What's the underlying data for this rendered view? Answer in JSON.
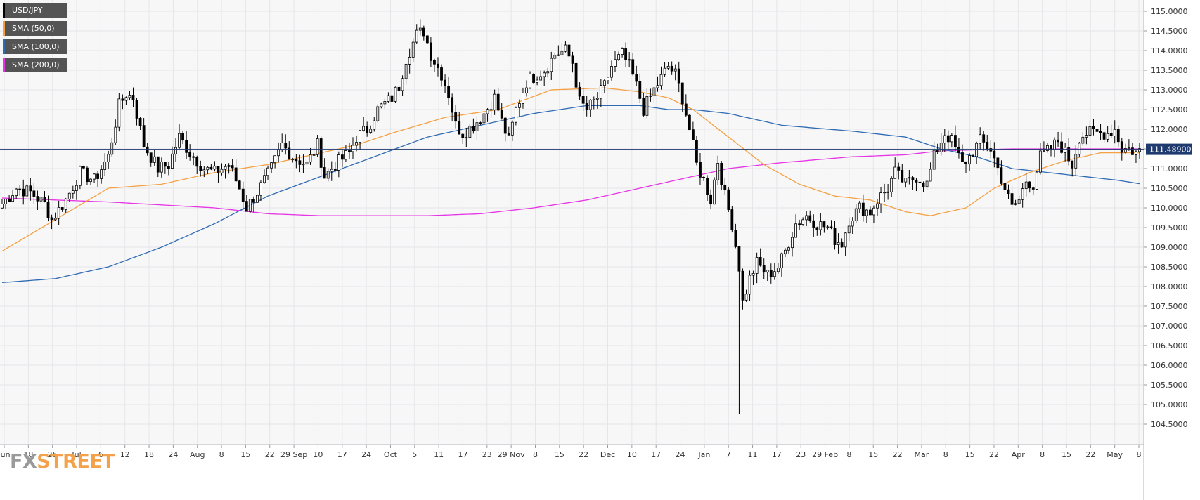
{
  "chart_data": {
    "type": "candlestick",
    "symbol": "USD/JPY",
    "legend": [
      {
        "label": "USD/JPY",
        "color": "#000000"
      },
      {
        "label": "SMA (50,0)",
        "color": "#f5a041"
      },
      {
        "label": "SMA (100,0)",
        "color": "#2f6bb3"
      },
      {
        "label": "SMA (200,0)",
        "color": "#e535e5"
      }
    ],
    "ylim": [
      104.3,
      115.2
    ],
    "y_ticks": [
      "115.0000",
      "114.5000",
      "114.0000",
      "113.5000",
      "113.0000",
      "112.5000",
      "112.0000",
      "111.5000",
      "111.0000",
      "110.5000",
      "110.0000",
      "109.5000",
      "109.0000",
      "108.5000",
      "108.0000",
      "107.5000",
      "107.0000",
      "106.5000",
      "106.0000",
      "105.5000",
      "105.0000",
      "104.5000"
    ],
    "x_ticks": [
      "Jun",
      "18",
      "25",
      "Jul",
      "6",
      "12",
      "18",
      "24",
      "Aug",
      "8",
      "15",
      "22",
      "29 Sep",
      "10",
      "17",
      "24",
      "Oct",
      "5",
      "11",
      "17",
      "23",
      "29 Nov",
      "8",
      "15",
      "22",
      "Dec",
      "10",
      "17",
      "24",
      "Jan",
      "7",
      "11",
      "17",
      "23",
      "29 Feb",
      "8",
      "15",
      "22",
      "Mar",
      "8",
      "15",
      "22",
      "Apr",
      "8",
      "15",
      "22",
      "May",
      "8"
    ],
    "current_price": 111.489,
    "current_price_label": "111.48900",
    "ohlc_anchors": [
      [
        0,
        110.1
      ],
      [
        4,
        110.5
      ],
      [
        8,
        110.4
      ],
      [
        12,
        110.1
      ],
      [
        14,
        109.7
      ],
      [
        18,
        110.2
      ],
      [
        22,
        110.9
      ],
      [
        26,
        110.7
      ],
      [
        30,
        111.3
      ],
      [
        33,
        112.6
      ],
      [
        35,
        112.9
      ],
      [
        37,
        112.8
      ],
      [
        40,
        111.6
      ],
      [
        44,
        111.0
      ],
      [
        47,
        111.1
      ],
      [
        50,
        111.8
      ],
      [
        53,
        111.4
      ],
      [
        57,
        111.0
      ],
      [
        60,
        110.9
      ],
      [
        64,
        111.1
      ],
      [
        67,
        110.5
      ],
      [
        69,
        110.0
      ],
      [
        72,
        110.4
      ],
      [
        76,
        111.0
      ],
      [
        79,
        111.6
      ],
      [
        82,
        111.3
      ],
      [
        86,
        111.1
      ],
      [
        89,
        111.6
      ],
      [
        91,
        110.8
      ],
      [
        94,
        111.1
      ],
      [
        98,
        111.4
      ],
      [
        100,
        111.8
      ],
      [
        103,
        112.0
      ],
      [
        106,
        112.5
      ],
      [
        110,
        112.8
      ],
      [
        112,
        113.1
      ],
      [
        114,
        113.8
      ],
      [
        117,
        114.4
      ],
      [
        119,
        114.5
      ],
      [
        121,
        113.9
      ],
      [
        124,
        113.4
      ],
      [
        126,
        112.9
      ],
      [
        128,
        112.1
      ],
      [
        130,
        111.9
      ],
      [
        133,
        112.1
      ],
      [
        136,
        112.4
      ],
      [
        139,
        112.8
      ],
      [
        141,
        112.2
      ],
      [
        143,
        111.7
      ],
      [
        145,
        112.5
      ],
      [
        148,
        113.2
      ],
      [
        151,
        113.4
      ],
      [
        153,
        113.5
      ],
      [
        156,
        113.9
      ],
      [
        159,
        114.0
      ],
      [
        161,
        113.7
      ],
      [
        163,
        112.7
      ],
      [
        165,
        112.5
      ],
      [
        168,
        112.8
      ],
      [
        170,
        113.1
      ],
      [
        172,
        113.6
      ],
      [
        175,
        113.9
      ],
      [
        177,
        113.6
      ],
      [
        179,
        113.1
      ],
      [
        181,
        112.5
      ],
      [
        184,
        113.0
      ],
      [
        186,
        113.3
      ],
      [
        188,
        113.6
      ],
      [
        190,
        113.4
      ],
      [
        192,
        112.8
      ],
      [
        194,
        112.0
      ],
      [
        196,
        111.1
      ],
      [
        198,
        110.7
      ],
      [
        200,
        110.2
      ],
      [
        202,
        111.2
      ],
      [
        204,
        110.3
      ],
      [
        206,
        109.6
      ],
      [
        208,
        108.5
      ],
      [
        209,
        107.6
      ],
      [
        211,
        108.2
      ],
      [
        213,
        108.6
      ],
      [
        216,
        108.3
      ],
      [
        219,
        108.5
      ],
      [
        221,
        108.9
      ],
      [
        224,
        109.6
      ],
      [
        227,
        109.8
      ],
      [
        230,
        109.6
      ],
      [
        233,
        109.5
      ],
      [
        235,
        109.2
      ],
      [
        237,
        109.1
      ],
      [
        239,
        109.7
      ],
      [
        242,
        110.0
      ],
      [
        245,
        109.9
      ],
      [
        247,
        110.2
      ],
      [
        250,
        110.5
      ],
      [
        252,
        110.9
      ],
      [
        255,
        110.6
      ],
      [
        258,
        110.8
      ],
      [
        261,
        110.6
      ],
      [
        263,
        111.3
      ],
      [
        266,
        111.9
      ],
      [
        268,
        111.7
      ],
      [
        271,
        111.1
      ],
      [
        273,
        111.3
      ],
      [
        276,
        111.7
      ],
      [
        279,
        111.5
      ],
      [
        281,
        111.0
      ],
      [
        283,
        110.5
      ],
      [
        285,
        110.0
      ],
      [
        287,
        110.2
      ],
      [
        289,
        110.7
      ],
      [
        291,
        110.6
      ],
      [
        293,
        111.3
      ],
      [
        296,
        111.5
      ],
      [
        298,
        111.7
      ],
      [
        300,
        111.4
      ],
      [
        302,
        111.1
      ],
      [
        304,
        111.8
      ],
      [
        306,
        111.9
      ],
      [
        309,
        111.9
      ],
      [
        312,
        111.9
      ],
      [
        314,
        112.0
      ],
      [
        316,
        111.5
      ],
      [
        318,
        111.5
      ],
      [
        320,
        111.4
      ],
      [
        322,
        111.5
      ]
    ],
    "sma50": [
      [
        0,
        108.9
      ],
      [
        15,
        109.7
      ],
      [
        30,
        110.5
      ],
      [
        45,
        110.6
      ],
      [
        60,
        110.9
      ],
      [
        75,
        111.1
      ],
      [
        90,
        111.4
      ],
      [
        100,
        111.6
      ],
      [
        110,
        111.9
      ],
      [
        125,
        112.3
      ],
      [
        140,
        112.5
      ],
      [
        155,
        113.0
      ],
      [
        170,
        113.05
      ],
      [
        180,
        112.95
      ],
      [
        188,
        112.8
      ],
      [
        195,
        112.5
      ],
      [
        205,
        111.8
      ],
      [
        215,
        111.1
      ],
      [
        225,
        110.6
      ],
      [
        235,
        110.3
      ],
      [
        245,
        110.2
      ],
      [
        255,
        109.9
      ],
      [
        262,
        109.8
      ],
      [
        272,
        110.0
      ],
      [
        280,
        110.5
      ],
      [
        290,
        110.9
      ],
      [
        300,
        111.2
      ],
      [
        310,
        111.4
      ],
      [
        322,
        111.4
      ]
    ],
    "sma100": [
      [
        0,
        108.1
      ],
      [
        15,
        108.2
      ],
      [
        30,
        108.5
      ],
      [
        45,
        109.0
      ],
      [
        60,
        109.6
      ],
      [
        75,
        110.3
      ],
      [
        90,
        110.8
      ],
      [
        105,
        111.3
      ],
      [
        120,
        111.8
      ],
      [
        135,
        112.1
      ],
      [
        150,
        112.4
      ],
      [
        165,
        112.6
      ],
      [
        180,
        112.6
      ],
      [
        188,
        112.5
      ],
      [
        195,
        112.5
      ],
      [
        205,
        112.4
      ],
      [
        220,
        112.1
      ],
      [
        240,
        111.95
      ],
      [
        255,
        111.8
      ],
      [
        265,
        111.5
      ],
      [
        275,
        111.3
      ],
      [
        285,
        111.0
      ],
      [
        295,
        110.9
      ],
      [
        305,
        110.8
      ],
      [
        315,
        110.7
      ],
      [
        322,
        110.6
      ]
    ],
    "sma200": [
      [
        0,
        110.25
      ],
      [
        30,
        110.15
      ],
      [
        60,
        110.0
      ],
      [
        75,
        109.85
      ],
      [
        90,
        109.8
      ],
      [
        105,
        109.8
      ],
      [
        120,
        109.8
      ],
      [
        135,
        109.85
      ],
      [
        150,
        110.0
      ],
      [
        165,
        110.2
      ],
      [
        180,
        110.5
      ],
      [
        195,
        110.8
      ],
      [
        205,
        111.0
      ],
      [
        220,
        111.15
      ],
      [
        240,
        111.3
      ],
      [
        255,
        111.35
      ],
      [
        265,
        111.45
      ],
      [
        285,
        111.5
      ],
      [
        305,
        111.5
      ],
      [
        322,
        111.5
      ]
    ],
    "sample_count": 322
  },
  "branding": {
    "fx": "FX",
    "street": "STREET"
  }
}
